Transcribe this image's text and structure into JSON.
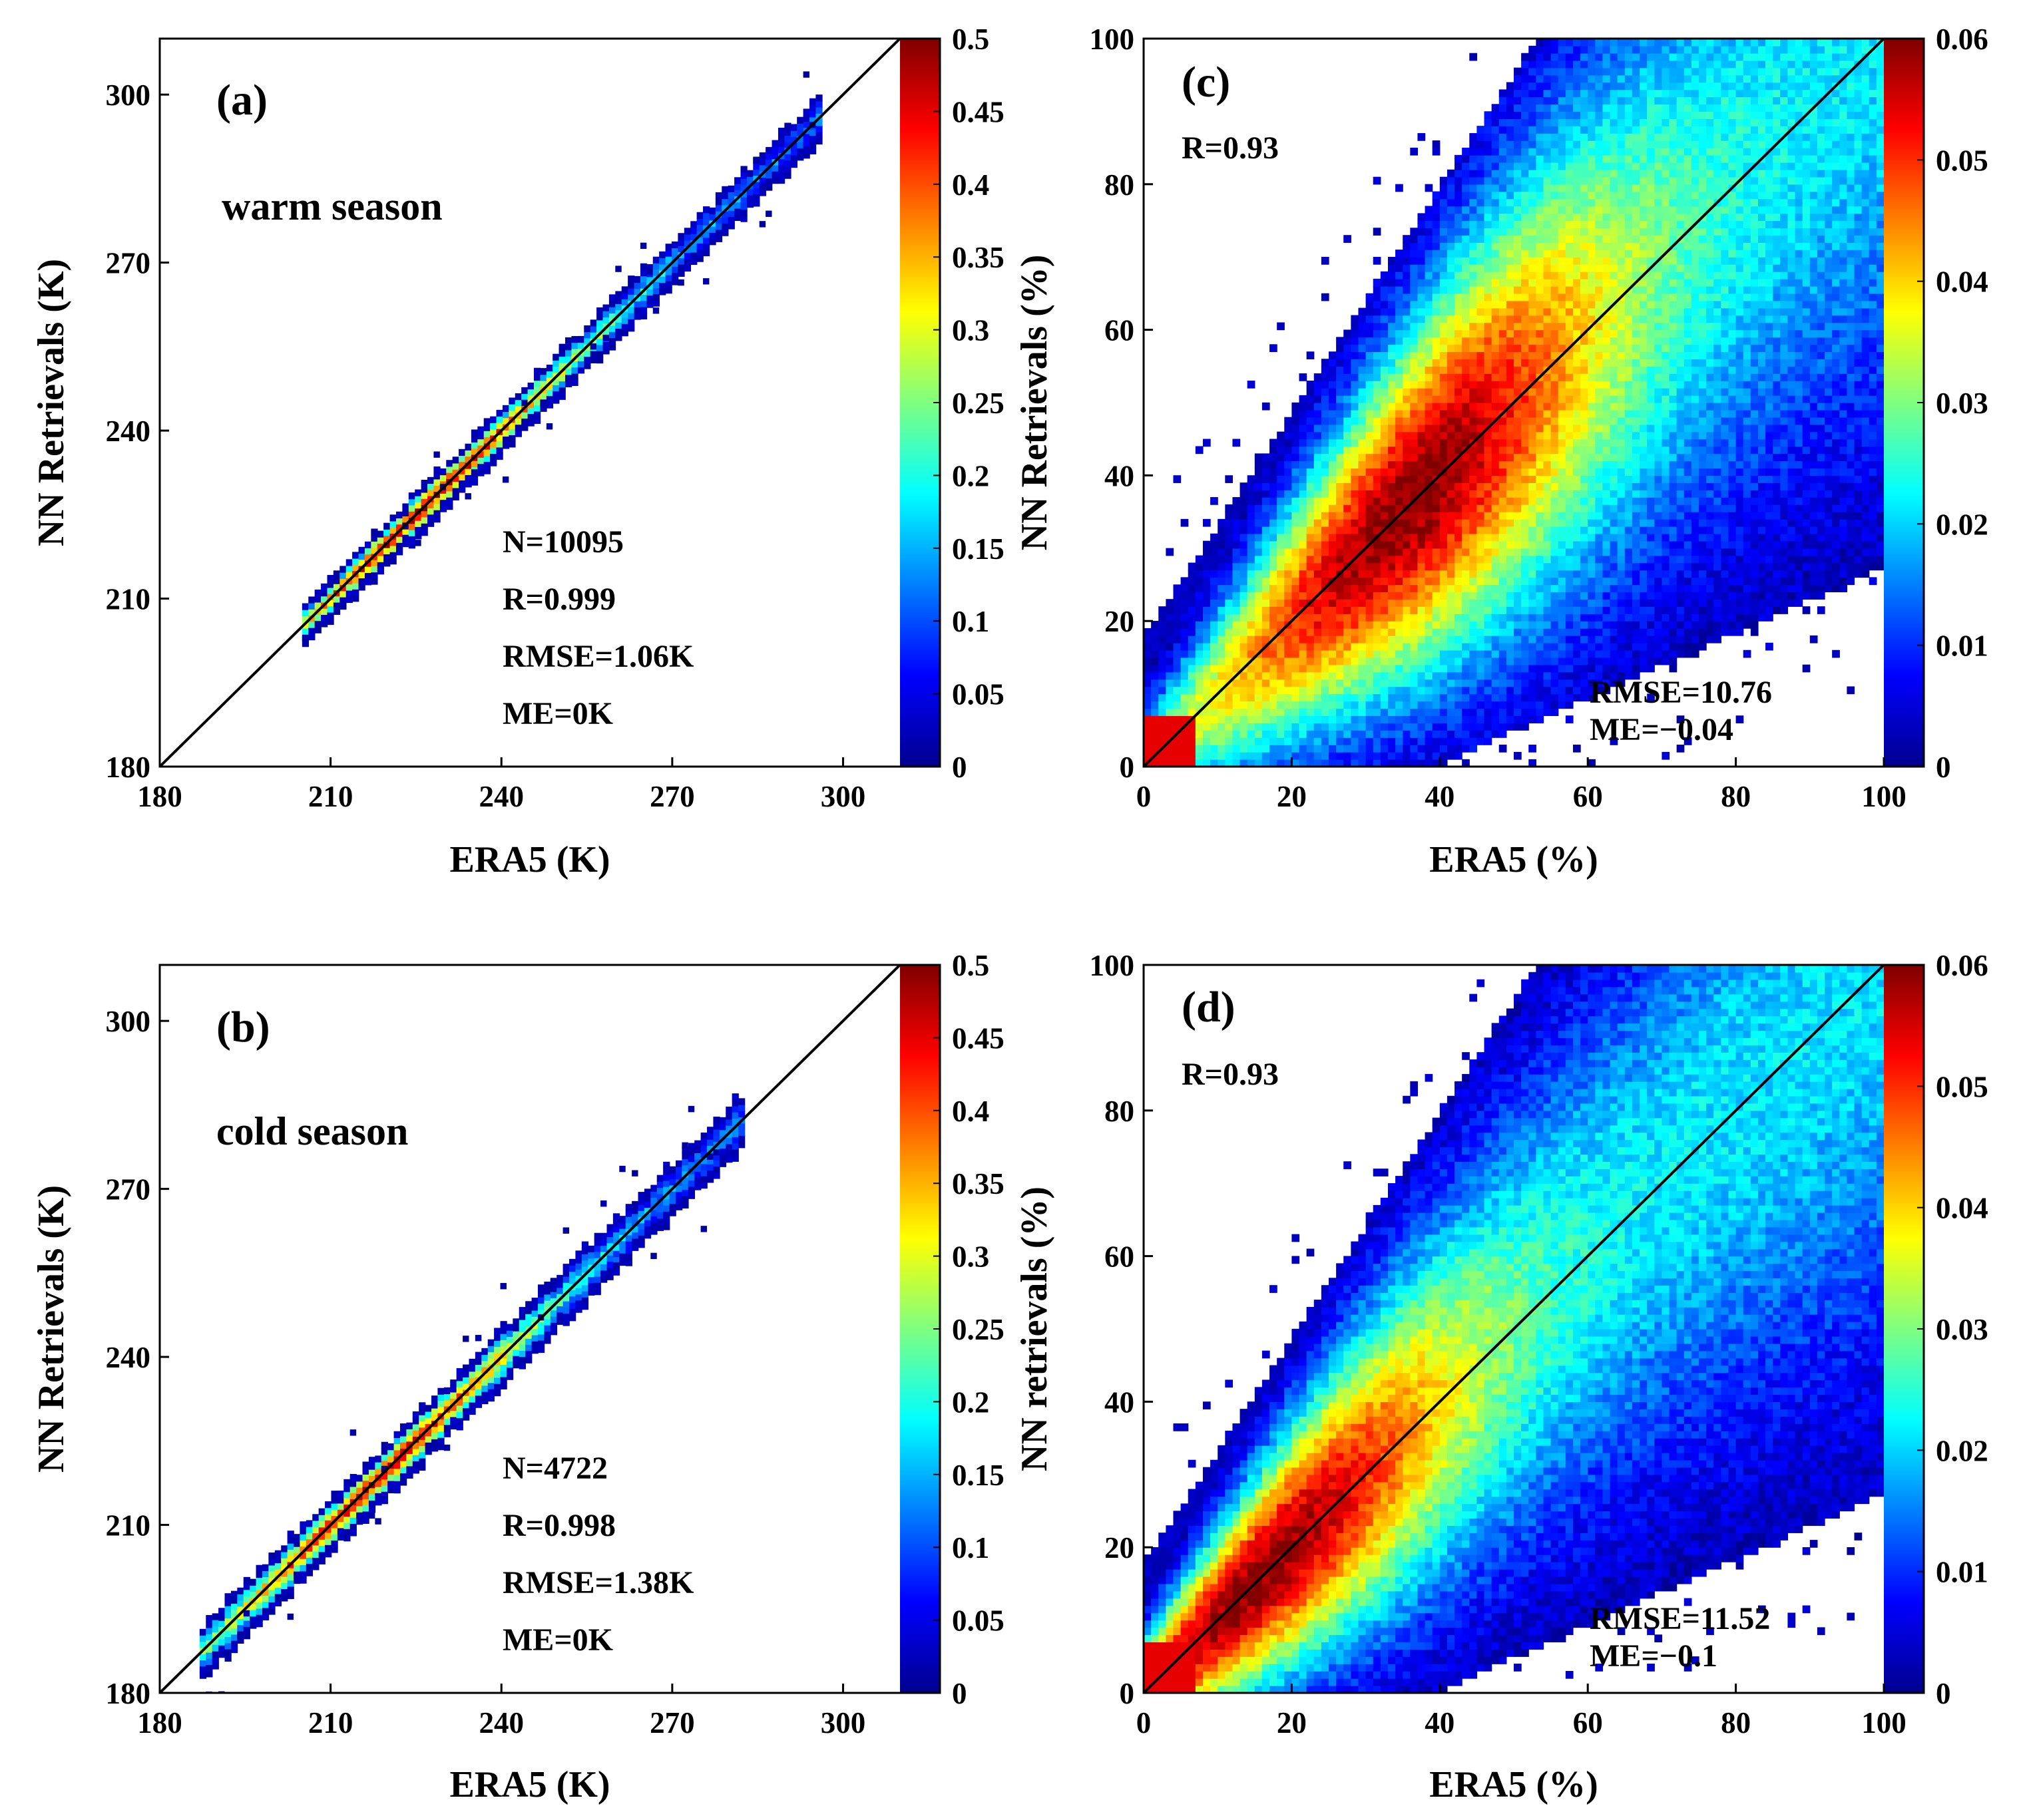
{
  "chart_data": [
    {
      "type": "heatmap",
      "panel_label": "(a)",
      "season": "warm season",
      "xlabel": "ERA5 (K)",
      "ylabel": "NN Retrievals (K)",
      "xlim": [
        180,
        310
      ],
      "ylim": [
        180,
        310
      ],
      "xticks": [
        "180",
        "210",
        "240",
        "270",
        "300"
      ],
      "yticks": [
        "180",
        "210",
        "240",
        "270",
        "300"
      ],
      "one_to_one_line": true,
      "stats": [
        "N=10095",
        "R=0.999",
        "RMSE=1.06K",
        "ME=0K"
      ],
      "density_range": [
        205,
        296
      ],
      "peak_density_at": 226,
      "spread": 2.6,
      "colorbar": {
        "range": [
          0,
          0.5
        ],
        "ticks": [
          "0",
          "0.05",
          "0.1",
          "0.15",
          "0.2",
          "0.25",
          "0.3",
          "0.35",
          "0.4",
          "0.45",
          "0.5"
        ]
      }
    },
    {
      "type": "heatmap",
      "panel_label": "(b)",
      "season": "cold season",
      "xlabel": "ERA5 (K)",
      "ylabel": "NN Retrievals (K)",
      "xlim": [
        180,
        310
      ],
      "ylim": [
        180,
        310
      ],
      "xticks": [
        "180",
        "210",
        "240",
        "270",
        "300"
      ],
      "yticks": [
        "180",
        "210",
        "240",
        "270",
        "300"
      ],
      "one_to_one_line": true,
      "stats": [
        "N=4722",
        "R=0.998",
        "RMSE=1.38K",
        "ME=0K"
      ],
      "density_range": [
        187,
        282
      ],
      "peak_density_at": 218,
      "spread": 3.2,
      "colorbar": {
        "range": [
          0,
          0.5
        ],
        "ticks": [
          "0",
          "0.05",
          "0.1",
          "0.15",
          "0.2",
          "0.25",
          "0.3",
          "0.35",
          "0.4",
          "0.45",
          "0.5"
        ]
      }
    },
    {
      "type": "heatmap",
      "panel_label": "(c)",
      "xlabel": "ERA5 (%)",
      "ylabel": "NN Retrievals (%)",
      "xlim": [
        0,
        100
      ],
      "ylim": [
        0,
        100
      ],
      "xticks": [
        "0",
        "20",
        "40",
        "60",
        "80",
        "100"
      ],
      "yticks": [
        "0",
        "20",
        "40",
        "60",
        "80",
        "100"
      ],
      "one_to_one_line": true,
      "stats_top": [
        "R=0.93"
      ],
      "stats_bottom": [
        "RMSE=10.76",
        "ME=−0.04"
      ],
      "peak_density_at": 35,
      "colorbar": {
        "range": [
          0,
          0.06
        ],
        "ticks": [
          "0",
          "0.01",
          "0.02",
          "0.03",
          "0.04",
          "0.05",
          "0.06"
        ]
      }
    },
    {
      "type": "heatmap",
      "panel_label": "(d)",
      "xlabel": "ERA5 (%)",
      "ylabel": "NN retrievals (%)",
      "xlim": [
        0,
        100
      ],
      "ylim": [
        0,
        100
      ],
      "xticks": [
        "0",
        "20",
        "40",
        "60",
        "80",
        "100"
      ],
      "yticks": [
        "0",
        "20",
        "40",
        "60",
        "80",
        "100"
      ],
      "one_to_one_line": true,
      "stats_top": [
        "R=0.93"
      ],
      "stats_bottom": [
        "RMSE=11.52",
        "ME=−0.1"
      ],
      "peak_density_at": 15,
      "colorbar": {
        "range": [
          0,
          0.06
        ],
        "ticks": [
          "0",
          "0.01",
          "0.02",
          "0.03",
          "0.04",
          "0.05",
          "0.06"
        ]
      }
    }
  ]
}
